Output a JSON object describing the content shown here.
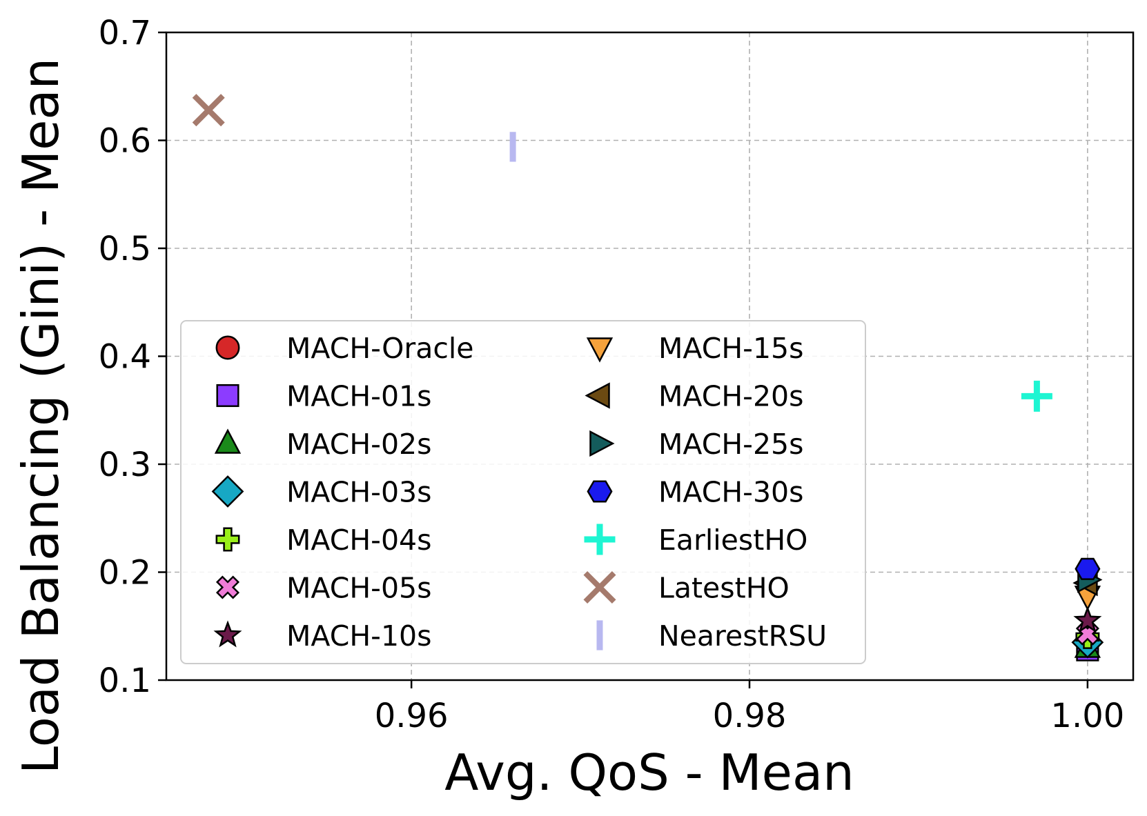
{
  "chart_data": {
    "type": "scatter",
    "xlabel": "Avg. QoS - Mean",
    "ylabel": "Load Balancing (Gini) - Mean",
    "xlim": [
      0.9455,
      1.0027
    ],
    "ylim": [
      0.1,
      0.7
    ],
    "x_ticks": [
      0.96,
      0.98,
      1.0
    ],
    "x_tick_labels": [
      "0.96",
      "0.98",
      "1.00"
    ],
    "y_ticks": [
      0.1,
      0.2,
      0.3,
      0.4,
      0.5,
      0.6,
      0.7
    ],
    "y_tick_labels": [
      "0.1",
      "0.2",
      "0.3",
      "0.4",
      "0.5",
      "0.6",
      "0.7"
    ],
    "grid": true,
    "legend_placement": "lower-left",
    "series": [
      {
        "name": "MACH-Oracle",
        "marker": "circle",
        "color": "#d62728",
        "x": 1.0,
        "y": 0.135
      },
      {
        "name": "MACH-01s",
        "marker": "square",
        "color": "#8c3cff",
        "x": 1.0,
        "y": 0.128
      },
      {
        "name": "MACH-02s",
        "marker": "triangle-up",
        "color": "#1a8a1a",
        "x": 1.0,
        "y": 0.13
      },
      {
        "name": "MACH-03s",
        "marker": "diamond",
        "color": "#17a8c4",
        "x": 1.0,
        "y": 0.135
      },
      {
        "name": "MACH-04s",
        "marker": "plus-filled",
        "color": "#9aef1a",
        "x": 1.0,
        "y": 0.14
      },
      {
        "name": "MACH-05s",
        "marker": "x-filled",
        "color": "#f07cd8",
        "x": 1.0,
        "y": 0.143
      },
      {
        "name": "MACH-10s",
        "marker": "star",
        "color": "#6b1a4a",
        "x": 1.0,
        "y": 0.155
      },
      {
        "name": "MACH-15s",
        "marker": "triangle-down",
        "color": "#f5a23c",
        "x": 1.0,
        "y": 0.178
      },
      {
        "name": "MACH-20s",
        "marker": "triangle-left",
        "color": "#6b4a12",
        "x": 1.0,
        "y": 0.19
      },
      {
        "name": "MACH-25s",
        "marker": "triangle-right",
        "color": "#145c5c",
        "x": 1.0,
        "y": 0.193
      },
      {
        "name": "MACH-30s",
        "marker": "hexagon",
        "color": "#1a1aee",
        "x": 1.0,
        "y": 0.203
      },
      {
        "name": "EarliestHO",
        "marker": "plus",
        "color": "#1ef5d2",
        "x": 0.997,
        "y": 0.363
      },
      {
        "name": "LatestHO",
        "marker": "x",
        "color": "#a57a6c",
        "x": 0.948,
        "y": 0.628
      },
      {
        "name": "NearestRSU",
        "marker": "vline",
        "color": "#b8b8f0",
        "x": 0.966,
        "y": 0.594
      }
    ]
  }
}
